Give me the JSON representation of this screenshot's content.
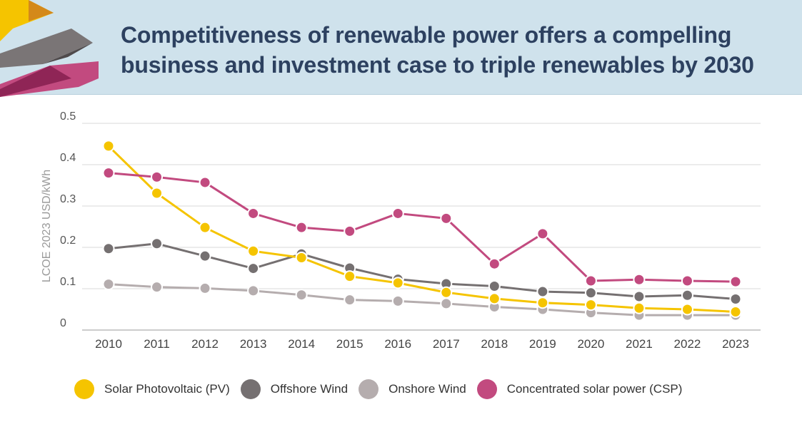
{
  "header": {
    "title_line1": "Competitiveness of renewable power offers a compelling",
    "title_line2": "business and investment case to triple renewables by 2030"
  },
  "colors": {
    "header_bg": "#cfe2ec",
    "title": "#2d4160",
    "solar_pv": "#f5c400",
    "offshore_wind": "#757071",
    "onshore_wind": "#b5adae",
    "csp": "#c24a7f"
  },
  "chart_data": {
    "type": "line",
    "title": "Competitiveness of renewable power offers a compelling business and investment case to triple renewables by 2030",
    "xlabel": "",
    "ylabel": "LCOE 2023 USD/kWh",
    "ylim": [
      0,
      0.5
    ],
    "yticks": [
      0,
      0.1,
      0.2,
      0.3,
      0.4,
      0.5
    ],
    "ytick_labels": [
      "0",
      "0.1",
      "0.2",
      "0.3",
      "0.4",
      "0.5"
    ],
    "grid": true,
    "legend_position": "bottom",
    "categories": [
      "2010",
      "2011",
      "2012",
      "2013",
      "2014",
      "2015",
      "2016",
      "2017",
      "2018",
      "2019",
      "2020",
      "2021",
      "2022",
      "2023"
    ],
    "series": [
      {
        "name": "Onshore Wind",
        "color_key": "onshore_wind",
        "values": [
          0.111,
          0.104,
          0.101,
          0.095,
          0.085,
          0.073,
          0.07,
          0.064,
          0.056,
          0.05,
          0.042,
          0.036,
          0.036,
          0.036
        ]
      },
      {
        "name": "Offshore Wind",
        "color_key": "offshore_wind",
        "values": [
          0.197,
          0.209,
          0.179,
          0.149,
          0.184,
          0.15,
          0.123,
          0.112,
          0.106,
          0.093,
          0.09,
          0.081,
          0.084,
          0.075
        ]
      },
      {
        "name": "Solar Photovoltaic (PV)",
        "color_key": "solar_pv",
        "values": [
          0.445,
          0.331,
          0.248,
          0.191,
          0.175,
          0.13,
          0.114,
          0.091,
          0.076,
          0.066,
          0.061,
          0.053,
          0.05,
          0.044
        ]
      },
      {
        "name": "Concentrated solar power (CSP)",
        "color_key": "csp",
        "values": [
          0.38,
          0.37,
          0.357,
          0.282,
          0.248,
          0.239,
          0.282,
          0.27,
          0.16,
          0.233,
          0.119,
          0.122,
          0.119,
          0.117
        ]
      }
    ]
  },
  "legend": [
    {
      "label": "Solar Photovoltaic (PV)",
      "color_key": "solar_pv"
    },
    {
      "label": "Offshore Wind",
      "color_key": "offshore_wind"
    },
    {
      "label": "Onshore Wind",
      "color_key": "onshore_wind"
    },
    {
      "label": "Concentrated solar power (CSP)",
      "color_key": "csp"
    }
  ]
}
